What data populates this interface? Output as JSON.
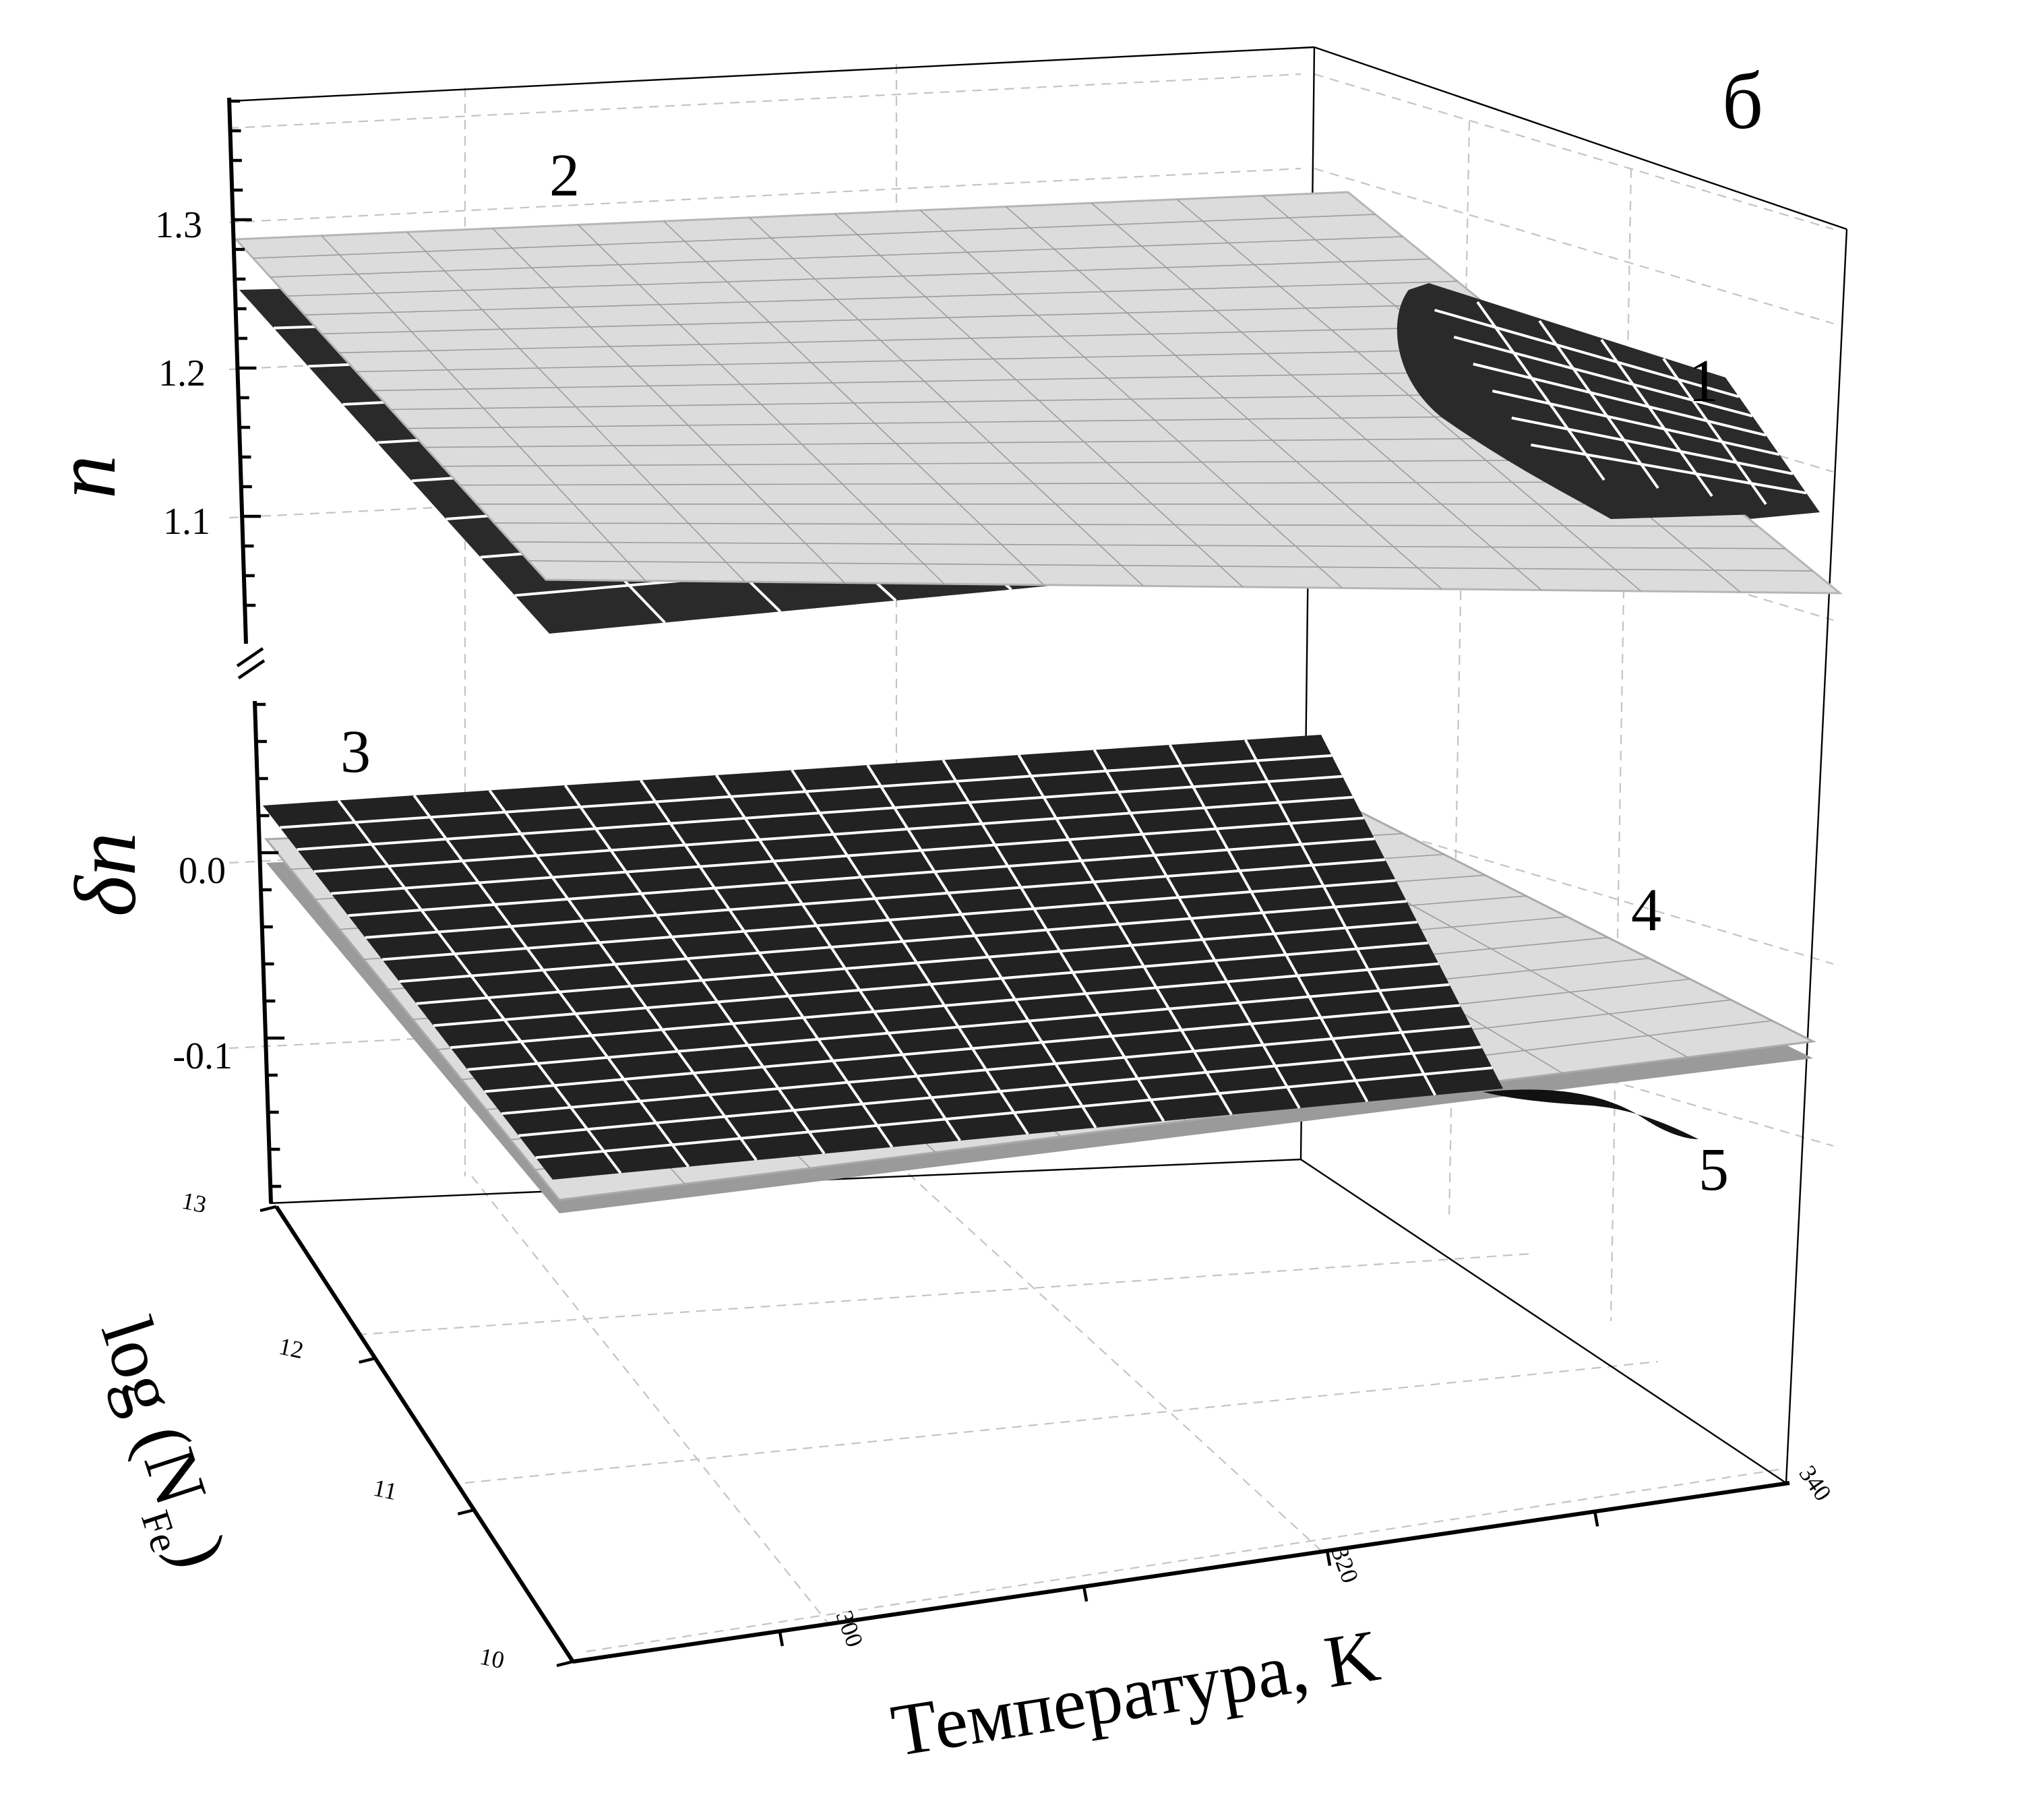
{
  "panel_label": "б",
  "chart_data": {
    "type": "surface3d",
    "title": "",
    "axes": {
      "x": {
        "label": "Температура, K",
        "ticks": [
          "300",
          "320",
          "340"
        ],
        "range": [
          290,
          340
        ]
      },
      "y": {
        "label_prefix": "log (N",
        "label_subscript": "Fe",
        "label_suffix": ")",
        "ticks": [
          "10",
          "11",
          "12",
          "13"
        ],
        "range": [
          10,
          13
        ]
      },
      "z_upper": {
        "label": "n",
        "ticks": [
          "1.1",
          "1.2",
          "1.3"
        ],
        "range": [
          1.0,
          1.38
        ]
      },
      "z_lower": {
        "label": "δn",
        "ticks": [
          "0.0",
          "-0.1"
        ],
        "range": [
          -0.18,
          0.05
        ]
      }
    },
    "axis_break": true,
    "grid": true,
    "surfaces": [
      {
        "label": "1",
        "variable": "n",
        "shade": "dark",
        "color": "#3a3a3a"
      },
      {
        "label": "2",
        "variable": "n",
        "shade": "light",
        "color": "#dcdcdc"
      },
      {
        "label": "3",
        "variable": "δn",
        "shade": "dark",
        "color": "#262626"
      },
      {
        "label": "4",
        "variable": "δn",
        "shade": "light",
        "color": "#d8d8d8"
      },
      {
        "label": "5",
        "variable": "δn",
        "shade": "medium",
        "color": "#9a9a9a"
      }
    ],
    "colors": {
      "dark": "#2a2a2a",
      "light": "#dcdcdc",
      "medium": "#9a9a9a",
      "grid": "#c4c4c4"
    }
  }
}
